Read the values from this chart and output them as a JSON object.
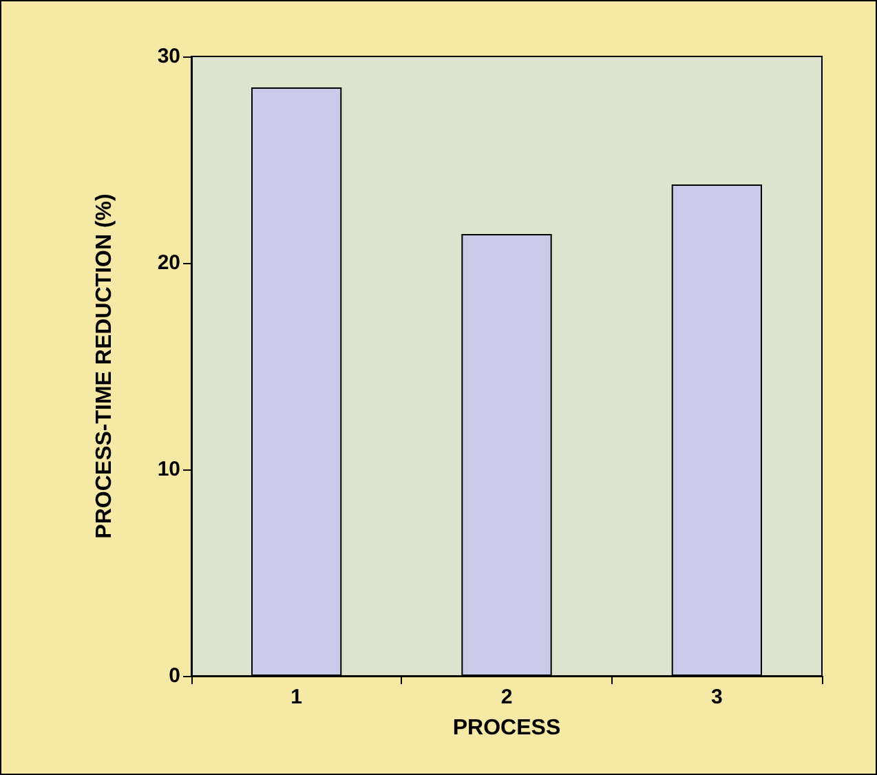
{
  "chart_data": {
    "type": "bar",
    "xlabel": "PROCESS",
    "ylabel": "PROCESS-TIME REDUCTION (%)",
    "categories": [
      "1",
      "2",
      "3"
    ],
    "values": [
      28.5,
      21.4,
      23.8
    ],
    "color": "#c8cce8",
    "ylim": [
      0,
      30
    ],
    "yticks": [
      0,
      10,
      20,
      30
    ],
    "grid": false
  }
}
